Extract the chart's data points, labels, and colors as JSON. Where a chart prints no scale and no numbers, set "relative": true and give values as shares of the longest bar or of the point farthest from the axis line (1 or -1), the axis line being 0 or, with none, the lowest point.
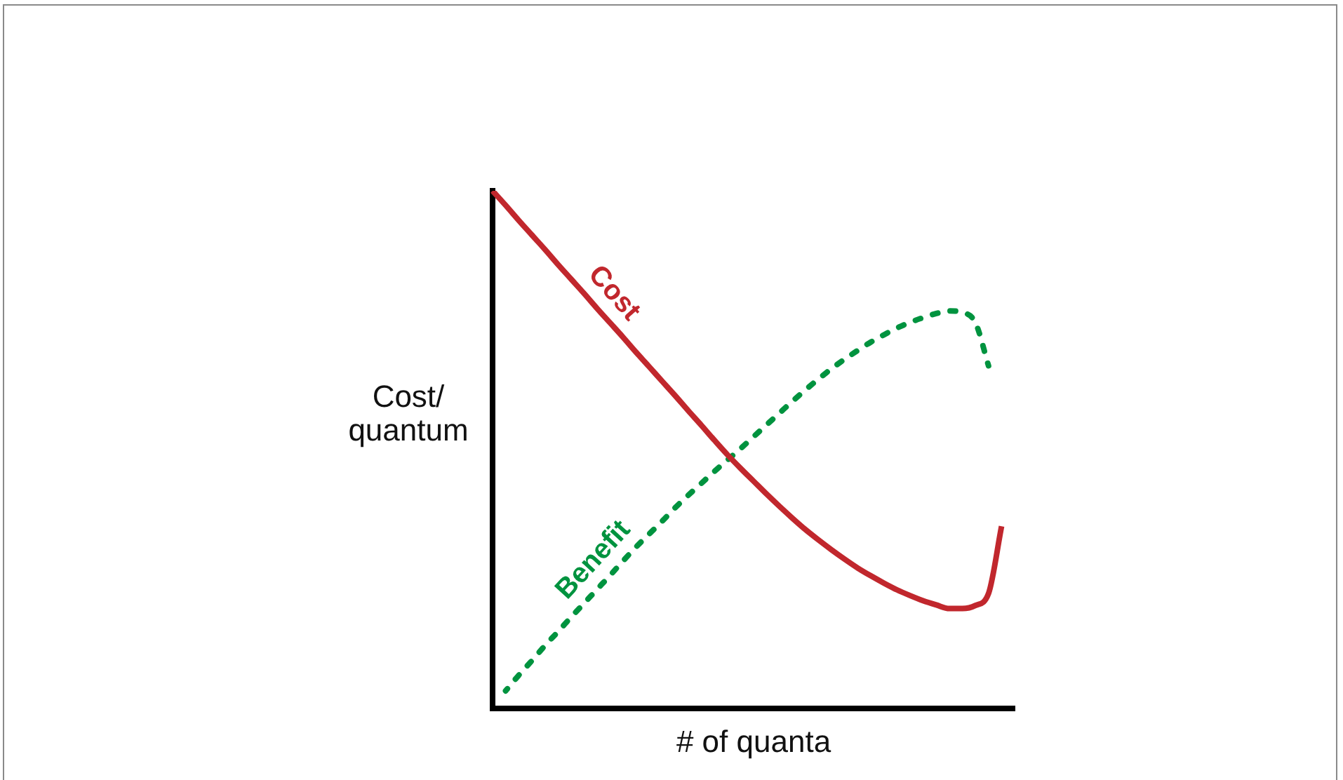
{
  "chart_data": {
    "type": "line",
    "xlabel": "# of quanta",
    "ylabel": "Cost/ quantum",
    "categories": [
      null,
      null,
      null,
      null,
      null,
      null,
      null,
      null,
      null,
      null,
      null,
      null,
      null,
      null,
      null,
      null,
      null,
      null,
      null,
      null,
      null,
      null,
      null,
      null,
      null,
      null,
      null,
      null,
      null,
      null,
      null,
      null,
      null,
      null,
      null,
      null,
      null,
      null,
      null,
      null,
      null
    ],
    "relative": true,
    "series": [
      {
        "name": "Cost",
        "color": "#c1272d",
        "line_style": "solid",
        "values": [
          1,
          0.972,
          0.943,
          0.915,
          0.887,
          0.858,
          0.83,
          0.802,
          0.773,
          0.745,
          0.717,
          0.688,
          0.66,
          0.632,
          0.604,
          0.575,
          0.547,
          0.518,
          0.49,
          0.464,
          0.439,
          0.414,
          0.39,
          0.367,
          0.345,
          0.325,
          0.306,
          0.288,
          0.271,
          0.256,
          0.242,
          0.229,
          0.218,
          0.208,
          0.2,
          0.193,
          0.193,
          0.199,
          0.222,
          0.352,
          null
        ]
      },
      {
        "name": "Benefit",
        "color": "#00933f",
        "line_style": "dashed",
        "values": [
          null,
          0.034,
          0.064,
          0.092,
          0.121,
          0.148,
          0.176,
          0.203,
          0.23,
          0.257,
          0.285,
          0.312,
          0.337,
          0.362,
          0.388,
          0.412,
          0.435,
          0.458,
          0.48,
          0.502,
          0.525,
          0.548,
          0.571,
          0.594,
          0.616,
          0.637,
          0.657,
          0.675,
          0.692,
          0.708,
          0.722,
          0.735,
          0.746,
          0.755,
          0.763,
          0.768,
          0.765,
          0.745,
          0.662,
          null,
          null
        ]
      }
    ],
    "grid": false,
    "legend": false,
    "marker": "none",
    "tick_labels": false
  }
}
